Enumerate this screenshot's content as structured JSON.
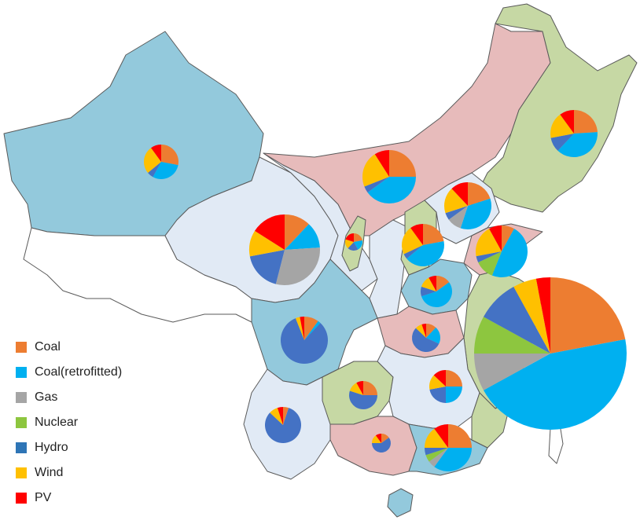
{
  "legend": [
    {
      "label": "Coal",
      "color": "#ED7D31"
    },
    {
      "label": "Coal(retrofitted)",
      "color": "#00B0F0"
    },
    {
      "label": "Gas",
      "color": "#A5A5A5"
    },
    {
      "label": "Nuclear",
      "color": "#8DC63F"
    },
    {
      "label": "Hydro",
      "color": "#4472C4"
    },
    {
      "label": "Wind",
      "color": "#FFC000"
    },
    {
      "label": "PV",
      "color": "#FF0000"
    }
  ],
  "region_colors": {
    "blue": "#93C9DC",
    "light": "#E1EAF5",
    "pink": "#E7BBBB",
    "green": "#C6D8A4"
  },
  "pies": [
    {
      "id": "xinjiang",
      "shares": [
        0.28,
        0.3,
        0.0,
        0.0,
        0.06,
        0.26,
        0.1
      ]
    },
    {
      "id": "inner-mongolia",
      "shares": [
        0.25,
        0.4,
        0.0,
        0.0,
        0.04,
        0.22,
        0.09
      ]
    },
    {
      "id": "heilongjiang",
      "shares": [
        0.24,
        0.38,
        0.0,
        0.0,
        0.1,
        0.18,
        0.1
      ]
    },
    {
      "id": "qinghai",
      "shares": [
        0.12,
        0.12,
        0.3,
        0.0,
        0.18,
        0.12,
        0.16
      ]
    },
    {
      "id": "ningxia",
      "shares": [
        0.22,
        0.2,
        0.0,
        0.0,
        0.2,
        0.18,
        0.2
      ]
    },
    {
      "id": "hebei",
      "shares": [
        0.2,
        0.35,
        0.1,
        0.0,
        0.05,
        0.18,
        0.12
      ]
    },
    {
      "id": "shanxi",
      "shares": [
        0.22,
        0.42,
        0.0,
        0.0,
        0.04,
        0.22,
        0.1
      ]
    },
    {
      "id": "shandong",
      "shares": [
        0.08,
        0.48,
        0.0,
        0.12,
        0.04,
        0.2,
        0.08
      ]
    },
    {
      "id": "henan",
      "shares": [
        0.15,
        0.55,
        0.0,
        0.0,
        0.1,
        0.12,
        0.08
      ]
    },
    {
      "id": "sichuan",
      "shares": [
        0.1,
        0.02,
        0.0,
        0.0,
        0.82,
        0.03,
        0.03
      ]
    },
    {
      "id": "hubei",
      "shares": [
        0.12,
        0.2,
        0.0,
        0.0,
        0.55,
        0.08,
        0.05
      ]
    },
    {
      "id": "jiangsu",
      "shares": [
        0.22,
        0.45,
        0.08,
        0.08,
        0.09,
        0.05,
        0.03
      ]
    },
    {
      "id": "guizhou",
      "shares": [
        0.25,
        0.0,
        0.0,
        0.0,
        0.55,
        0.12,
        0.08
      ]
    },
    {
      "id": "jiangxi",
      "shares": [
        0.25,
        0.25,
        0.0,
        0.0,
        0.22,
        0.15,
        0.13
      ]
    },
    {
      "id": "yunnan",
      "shares": [
        0.05,
        0.0,
        0.0,
        0.0,
        0.82,
        0.08,
        0.05
      ]
    },
    {
      "id": "guangxi",
      "shares": [
        0.15,
        0.0,
        0.0,
        0.0,
        0.6,
        0.15,
        0.1
      ]
    },
    {
      "id": "guangdong",
      "shares": [
        0.25,
        0.35,
        0.05,
        0.05,
        0.05,
        0.15,
        0.1
      ]
    }
  ]
}
